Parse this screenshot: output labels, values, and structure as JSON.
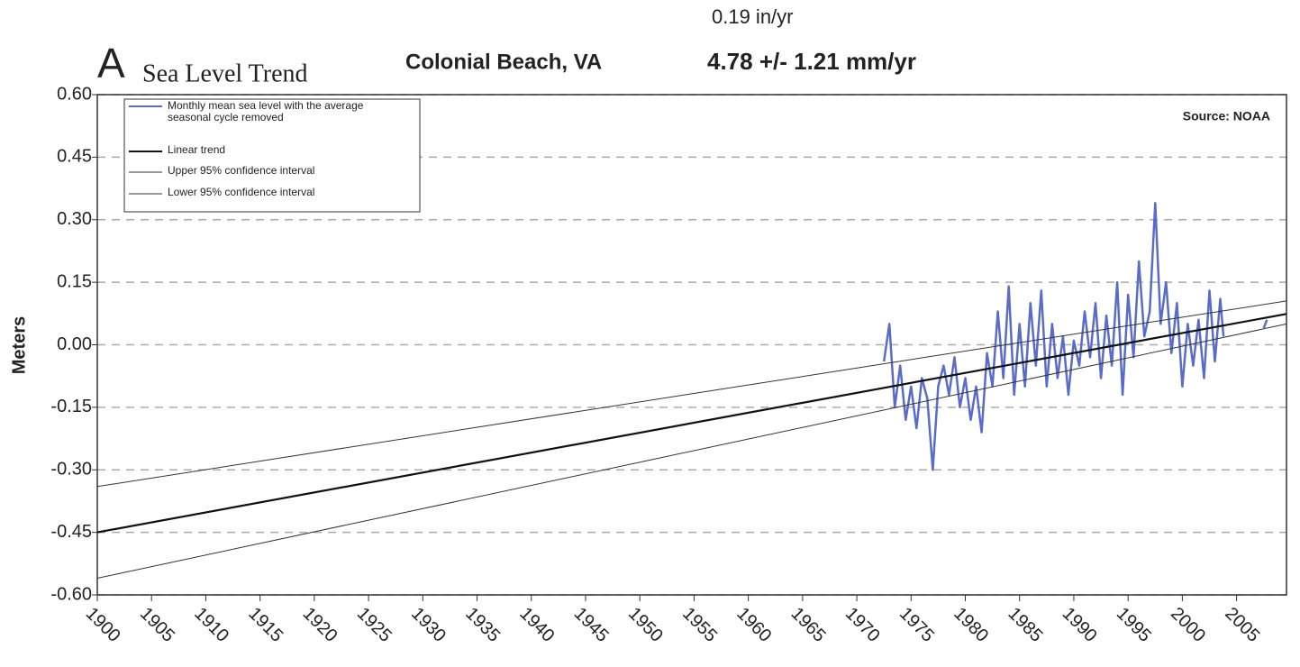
{
  "chart_data": {
    "type": "line",
    "panel_letter": "A",
    "title": "Sea Level Trend",
    "station": "Colonial Beach, VA",
    "rate_in": "0.19 in/yr",
    "rate_mm": "4.78 +/- 1.21 mm/yr",
    "source": "Source: NOAA",
    "y_label": "Meters",
    "xlim": [
      1900,
      2009.6
    ],
    "ylim": [
      -0.6,
      0.6
    ],
    "xticks": [
      1900,
      1905,
      1910,
      1915,
      1920,
      1925,
      1930,
      1935,
      1940,
      1945,
      1950,
      1955,
      1960,
      1965,
      1970,
      1975,
      1980,
      1985,
      1990,
      1995,
      2000,
      2005
    ],
    "yticks": [
      {
        "value": 0.6,
        "label": "0.60"
      },
      {
        "value": 0.45,
        "label": "0.45"
      },
      {
        "value": 0.3,
        "label": "0.30"
      },
      {
        "value": 0.15,
        "label": "0.15"
      },
      {
        "value": 0,
        "label": "0.00"
      },
      {
        "value": -0.15,
        "label": "-0.15"
      },
      {
        "value": -0.3,
        "label": "-0.30"
      },
      {
        "value": -0.45,
        "label": "-0.45"
      },
      {
        "value": -0.6,
        "label": "-0.60"
      }
    ],
    "grid": true,
    "legend": "top-left",
    "series": [
      {
        "name": "Monthly mean sea level with the average seasonal cycle removed",
        "color": "#5a6cc8",
        "width": 2.5,
        "x": [
          1972.5,
          1973,
          1973.5,
          1974,
          1974.5,
          1975,
          1975.5,
          1976,
          1976.5,
          1977,
          1977.5,
          1978,
          1978.5,
          1979,
          1979.5,
          1980,
          1980.5,
          1981,
          1981.5,
          1982,
          1982.5,
          1983,
          1983.5,
          1984,
          1984.5,
          1985,
          1985.5,
          1986,
          1986.5,
          1987,
          1987.5,
          1988,
          1988.5,
          1989,
          1989.5,
          1990,
          1990.5,
          1991,
          1991.5,
          1992,
          1992.5,
          1993,
          1993.5,
          1994,
          1994.5,
          1995,
          1995.5,
          1996,
          1996.5,
          1997,
          1997.5,
          1998,
          1998.5,
          1999,
          1999.5,
          2000,
          2000.5,
          2001,
          2001.5,
          2002,
          2002.5,
          2003,
          2003.5,
          2003.8,
          2005,
          2007.5,
          2007.8
        ],
        "values": [
          -0.04,
          0.05,
          -0.15,
          -0.05,
          -0.18,
          -0.1,
          -0.2,
          -0.08,
          -0.13,
          -0.3,
          -0.1,
          -0.05,
          -0.12,
          -0.03,
          -0.15,
          -0.08,
          -0.18,
          -0.1,
          -0.21,
          -0.02,
          -0.1,
          0.08,
          -0.08,
          0.14,
          -0.12,
          0.05,
          -0.1,
          0.1,
          -0.05,
          0.13,
          -0.1,
          0.05,
          -0.08,
          0.02,
          -0.12,
          0.01,
          -0.05,
          0.08,
          -0.03,
          0.1,
          -0.08,
          0.07,
          -0.05,
          0.15,
          -0.12,
          0.12,
          -0.03,
          0.2,
          0.02,
          0.08,
          0.34,
          0.05,
          0.15,
          -0.02,
          0.1,
          -0.1,
          0.05,
          -0.05,
          0.06,
          -0.08,
          0.13,
          -0.04,
          0.11,
          0.02,
          null,
          0.04,
          0.06
        ]
      },
      {
        "name": "Linear trend",
        "color": "#111111",
        "width": 2.2,
        "x": [
          1900,
          2009.6
        ],
        "values": [
          -0.45,
          0.074
        ]
      },
      {
        "name": "Upper 95% confidence interval",
        "color": "#333333",
        "width": 1,
        "x": [
          1900,
          2009.6
        ],
        "values": [
          -0.34,
          0.105
        ]
      },
      {
        "name": "Lower 95% confidence interval",
        "color": "#333333",
        "width": 1,
        "x": [
          1900,
          2009.6
        ],
        "values": [
          -0.56,
          0.05
        ]
      }
    ]
  }
}
